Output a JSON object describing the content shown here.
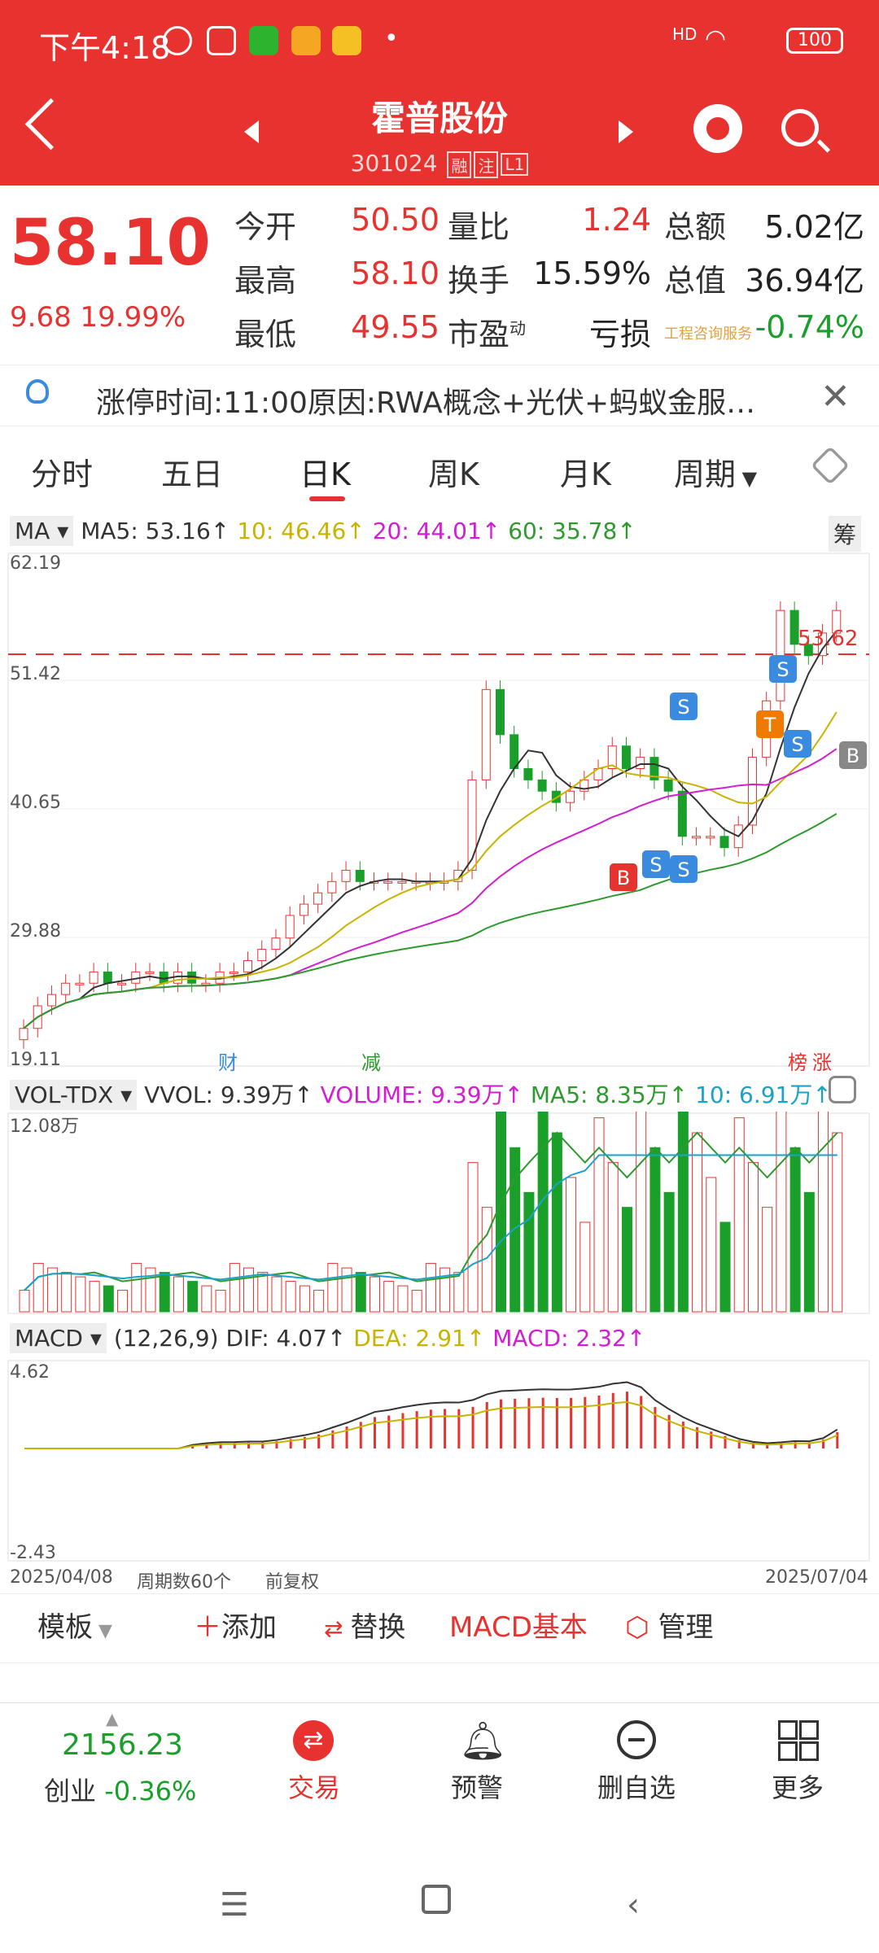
{
  "status_bar": {
    "time": "下午4:18",
    "signal": "HD",
    "battery": "100"
  },
  "header": {
    "title": "霍普股份",
    "code": "301024",
    "tags": [
      "融",
      "注",
      "L1"
    ]
  },
  "quote": {
    "price": "58.10",
    "change": "9.68",
    "change_pct": "19.99%",
    "rows": [
      {
        "l1": "今开",
        "v1": "50.50",
        "l2": "量比",
        "v2": "1.24",
        "l3": "总额",
        "v3": "5.02亿"
      },
      {
        "l1": "最高",
        "v1": "58.10",
        "l2": "换手",
        "v2": "15.59%",
        "l3": "总值",
        "v3": "36.94亿"
      },
      {
        "l1": "最低",
        "v1": "49.55",
        "l2": "市盈",
        "v2": "亏损",
        "l3": "",
        "v3": "-0.74%"
      }
    ],
    "pe_sup": "动",
    "service_tag": "工程咨询服务"
  },
  "notice": {
    "text": "涨停时间:11:00原因:RWA概念+光伏+蚂蚁金服…"
  },
  "tabs": [
    "分时",
    "五日",
    "日K",
    "周K",
    "月K",
    "周期"
  ],
  "active_tab": "日K",
  "ma_legend": {
    "select": "MA",
    "ma5": "MA5: 53.16↑",
    "ma10": "10: 46.46↑",
    "ma20": "20: 44.01↑",
    "ma60": "60: 35.78↑",
    "chip_button": "筹"
  },
  "vol_legend": {
    "select": "VOL-TDX",
    "vvol": "VVOL: 9.39万↑",
    "volume": "VOLUME: 9.39万↑",
    "ma5": "MA5: 8.35万↑",
    "ma10": "10: 6.91万↑"
  },
  "macd_legend": {
    "select": "MACD",
    "params": "(12,26,9)",
    "dif": "DIF: 4.07↑",
    "dea": "DEA: 2.91↑",
    "macd": "MACD: 2.32↑"
  },
  "axis": {
    "price_ticks": [
      "62.19",
      "51.42",
      "40.65",
      "29.88",
      "19.11"
    ],
    "vol_top": "12.08万",
    "macd_top": "4.62",
    "macd_bottom": "-2.43",
    "date_start": "2025/04/08",
    "date_end": "2025/07/04",
    "period_count": "周期数60个",
    "adjust": "前复权",
    "ref_price": "53.62"
  },
  "chart_markers": [
    "财",
    "减",
    "榜",
    "涨"
  ],
  "trade_signals": [
    "B",
    "S",
    "S",
    "S",
    "T",
    "S",
    "S",
    "B"
  ],
  "chart_data": {
    "type": "candlestick",
    "x": [
      "2025/04/08",
      "2025/07/04"
    ],
    "ylim": [
      19.11,
      62.19
    ],
    "last": {
      "open": 50.5,
      "high": 58.1,
      "low": 49.55,
      "close": 58.1
    },
    "ma": {
      "MA5": 53.16,
      "MA10": 46.46,
      "MA20": 44.01,
      "MA60": 35.78
    },
    "volume": {
      "VVOL": "9.39万",
      "MA5": "8.35万",
      "MA10": "6.91万"
    },
    "macd": {
      "DIF": 4.07,
      "DEA": 2.91,
      "MACD": 2.32
    }
  },
  "colors": {
    "up": "#e8322f",
    "down": "#1aa02a",
    "ma5": "#333333",
    "ma10": "#c8b400",
    "ma20": "#d21ed2",
    "ma60": "#2e9a2e"
  },
  "toolbar": {
    "template": "模板",
    "add": "添加",
    "replace": "替换",
    "macd_basic": "MACD基本",
    "manage": "管理"
  },
  "bottom_nav": {
    "index_value": "2156.23",
    "index_name": "创业",
    "index_change": "-0.36%",
    "items": [
      "交易",
      "预警",
      "删自选",
      "更多"
    ]
  }
}
